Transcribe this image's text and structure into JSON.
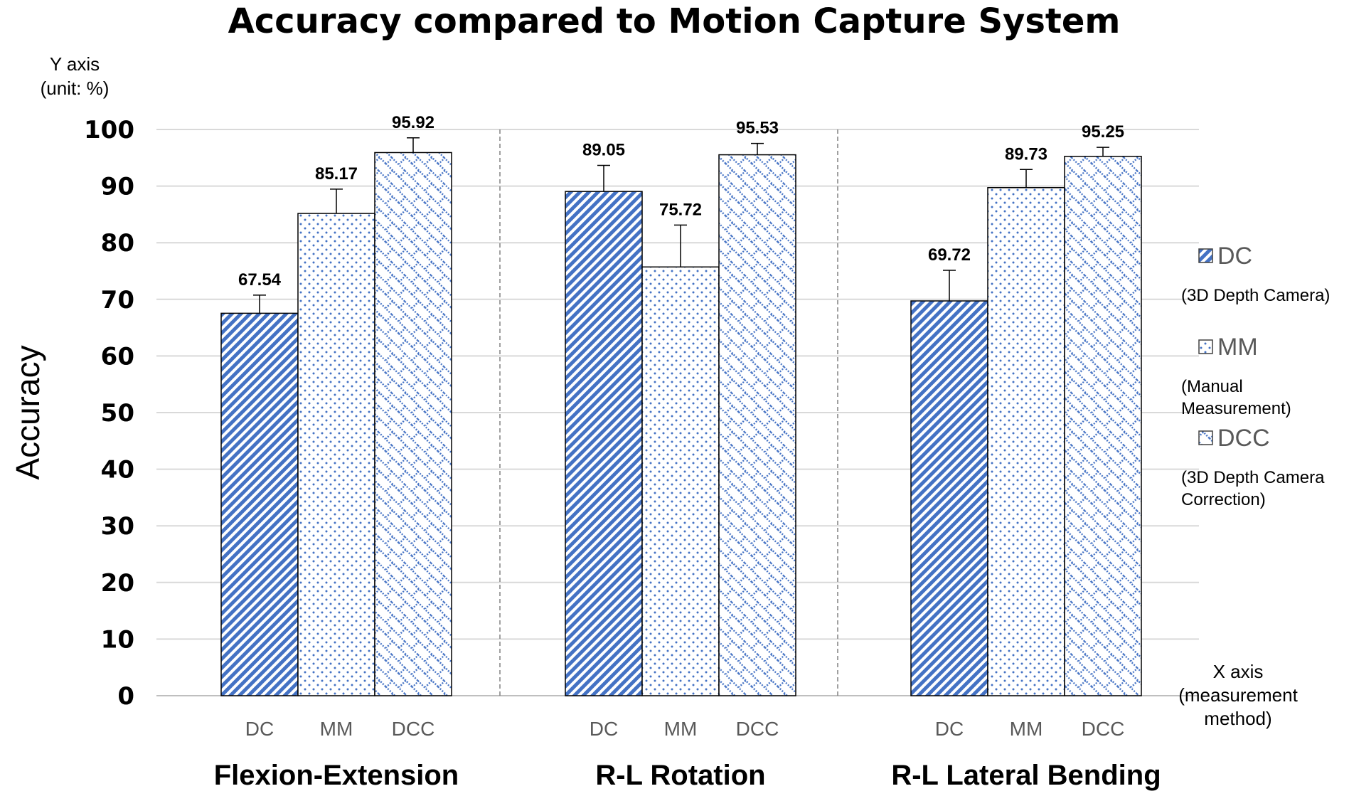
{
  "chart_data": {
    "type": "bar",
    "title": "Accuracy compared to Motion Capture System",
    "ylabel": "Accuracy",
    "y_axis_note": [
      "Y axis",
      "(unit: %)"
    ],
    "x_axis_note": [
      "X axis",
      "(measurement",
      "method)"
    ],
    "ylim": [
      0,
      100
    ],
    "yticks": [
      0,
      10,
      20,
      30,
      40,
      50,
      60,
      70,
      80,
      90,
      100
    ],
    "grid": true,
    "legend_position": "right",
    "groups": [
      {
        "label": "Flexion-Extension",
        "methods": [
          "DC",
          "MM",
          "DCC"
        ],
        "values": [
          67.54,
          85.17,
          95.92
        ],
        "value_labels": [
          "67.54",
          "85.17",
          "95.92"
        ],
        "error_upper": [
          3.2,
          4.3,
          2.6
        ]
      },
      {
        "label": "R-L Rotation",
        "methods": [
          "DC",
          "MM",
          "DCC"
        ],
        "values": [
          89.05,
          75.72,
          95.53
        ],
        "value_labels": [
          "89.05",
          "75.72",
          "95.53"
        ],
        "error_upper": [
          4.6,
          7.4,
          2.0
        ]
      },
      {
        "label": "R-L Lateral Bending",
        "methods": [
          "DC",
          "MM",
          "DCC"
        ],
        "values": [
          69.72,
          89.73,
          95.25
        ],
        "value_labels": [
          "69.72",
          "89.73",
          "95.25"
        ],
        "error_upper": [
          5.4,
          3.2,
          1.6
        ]
      }
    ],
    "series": [
      {
        "name": "DC",
        "description": [
          "(3D Depth Camera)"
        ],
        "pattern": "diagonal-stripes"
      },
      {
        "name": "MM",
        "description": [
          "(Manual",
          "Measurement)"
        ],
        "pattern": "dots"
      },
      {
        "name": "DCC",
        "description": [
          "(3D Depth Camera",
          "Correction)"
        ],
        "pattern": "crosshatch"
      }
    ],
    "colors": {
      "accent": "#4472c4",
      "grid": "#d9d9d9",
      "separator": "#808080",
      "tick_label": "#595959"
    }
  }
}
